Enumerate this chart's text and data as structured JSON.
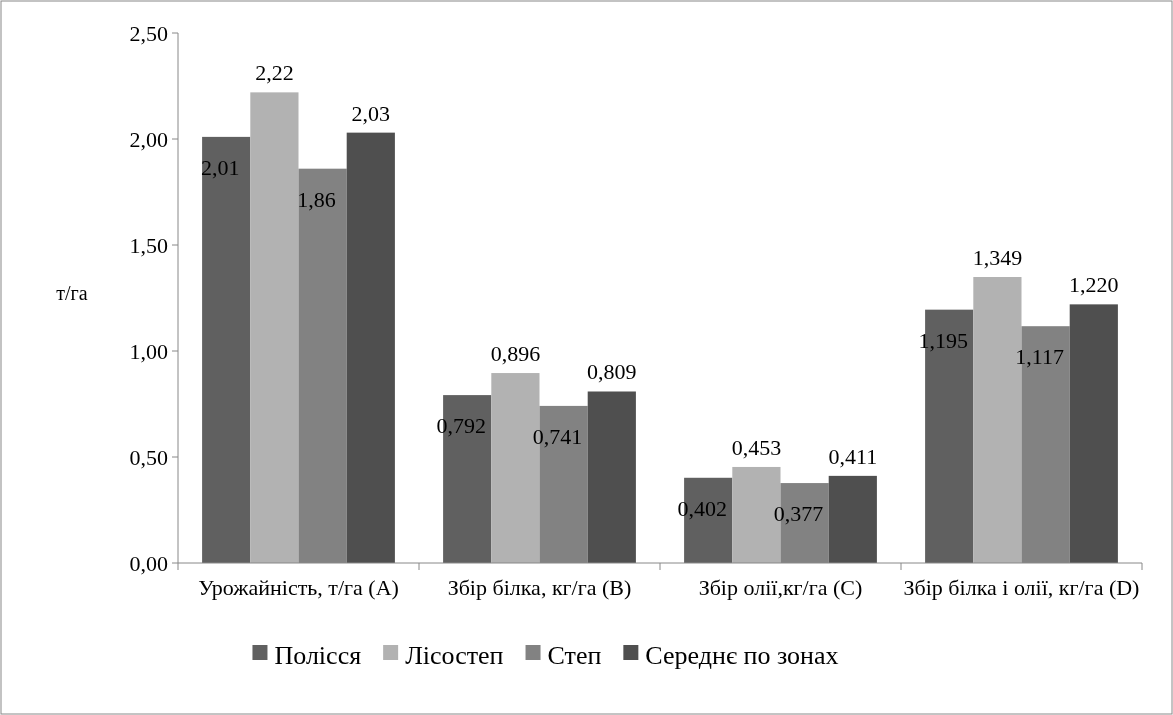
{
  "chart_data": {
    "type": "bar",
    "ylabel": "т/га",
    "categories": [
      "Урожайність, т/га (A)",
      "Збір білка, кг/га (B)",
      "Збір олії,кг/га (C)",
      "Збір білка і олії, кг/га (D)"
    ],
    "series": [
      {
        "name": "Полісся",
        "color": "#606060",
        "values": [
          2.01,
          0.792,
          0.402,
          1.195
        ],
        "value_labels": [
          "2,01",
          "0,792",
          "0,402",
          "1,195"
        ]
      },
      {
        "name": "Лісостеп",
        "color": "#b2b2b2",
        "values": [
          2.22,
          0.896,
          0.453,
          1.349
        ],
        "value_labels": [
          "2,22",
          "0,896",
          "0,453",
          "1,349"
        ]
      },
      {
        "name": "Степ",
        "color": "#828282",
        "values": [
          1.86,
          0.741,
          0.377,
          1.117
        ],
        "value_labels": [
          "1,86",
          "0,741",
          "0,377",
          "1,117"
        ]
      },
      {
        "name": "Середнє по зонах",
        "color": "#4f4f4f",
        "values": [
          2.03,
          0.809,
          0.411,
          1.22
        ],
        "value_labels": [
          "2,03",
          "0,809",
          "0,411",
          "1,220"
        ]
      }
    ],
    "ylim": [
      0,
      2.5
    ],
    "yticks": [
      {
        "value": 0,
        "label": "0,00"
      },
      {
        "value": 0.5,
        "label": "0,50"
      },
      {
        "value": 1,
        "label": "1,00"
      },
      {
        "value": 1.5,
        "label": "1,50"
      },
      {
        "value": 2,
        "label": "2,00"
      },
      {
        "value": 2.5,
        "label": "2,50"
      }
    ],
    "grid": false,
    "legend": "bottom"
  }
}
